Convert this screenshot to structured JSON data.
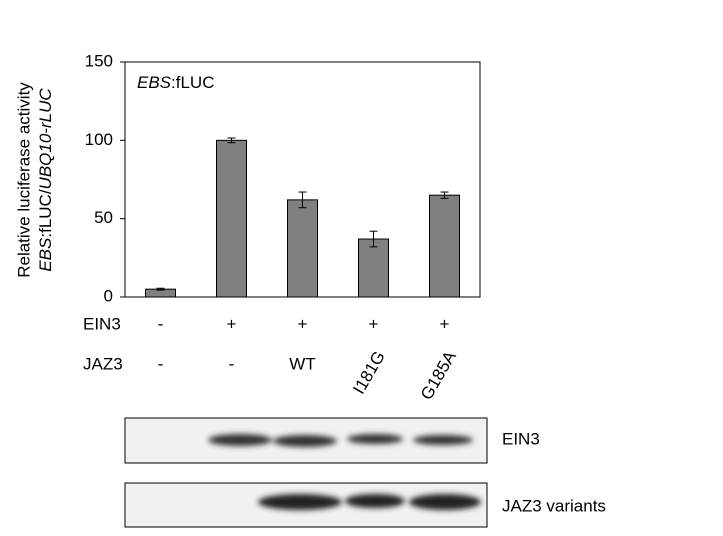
{
  "chart_data": {
    "type": "bar",
    "annotation": {
      "italic": "EBS",
      "plain": ":fLUC"
    },
    "ylabel": {
      "line1": "Relative luciferase activity",
      "line2": [
        "EBS",
        ":fLUC/",
        "UBQ10-rLUC"
      ]
    },
    "values": [
      5,
      100,
      62,
      37,
      65
    ],
    "errors": [
      0.6,
      1.5,
      5,
      5,
      2
    ],
    "color": "#808080",
    "ylim": [
      0,
      150
    ],
    "yticks": [
      0,
      50,
      100,
      150
    ],
    "conditions": [
      {
        "name": "EIN3",
        "labels": [
          "-",
          "+",
          "+",
          "+",
          "+"
        ]
      },
      {
        "name": "JAZ3",
        "labels": [
          "-",
          "-",
          "WT",
          "I181G",
          "G185A"
        ]
      }
    ],
    "blots": [
      "EIN3",
      "JAZ3 variants"
    ]
  }
}
